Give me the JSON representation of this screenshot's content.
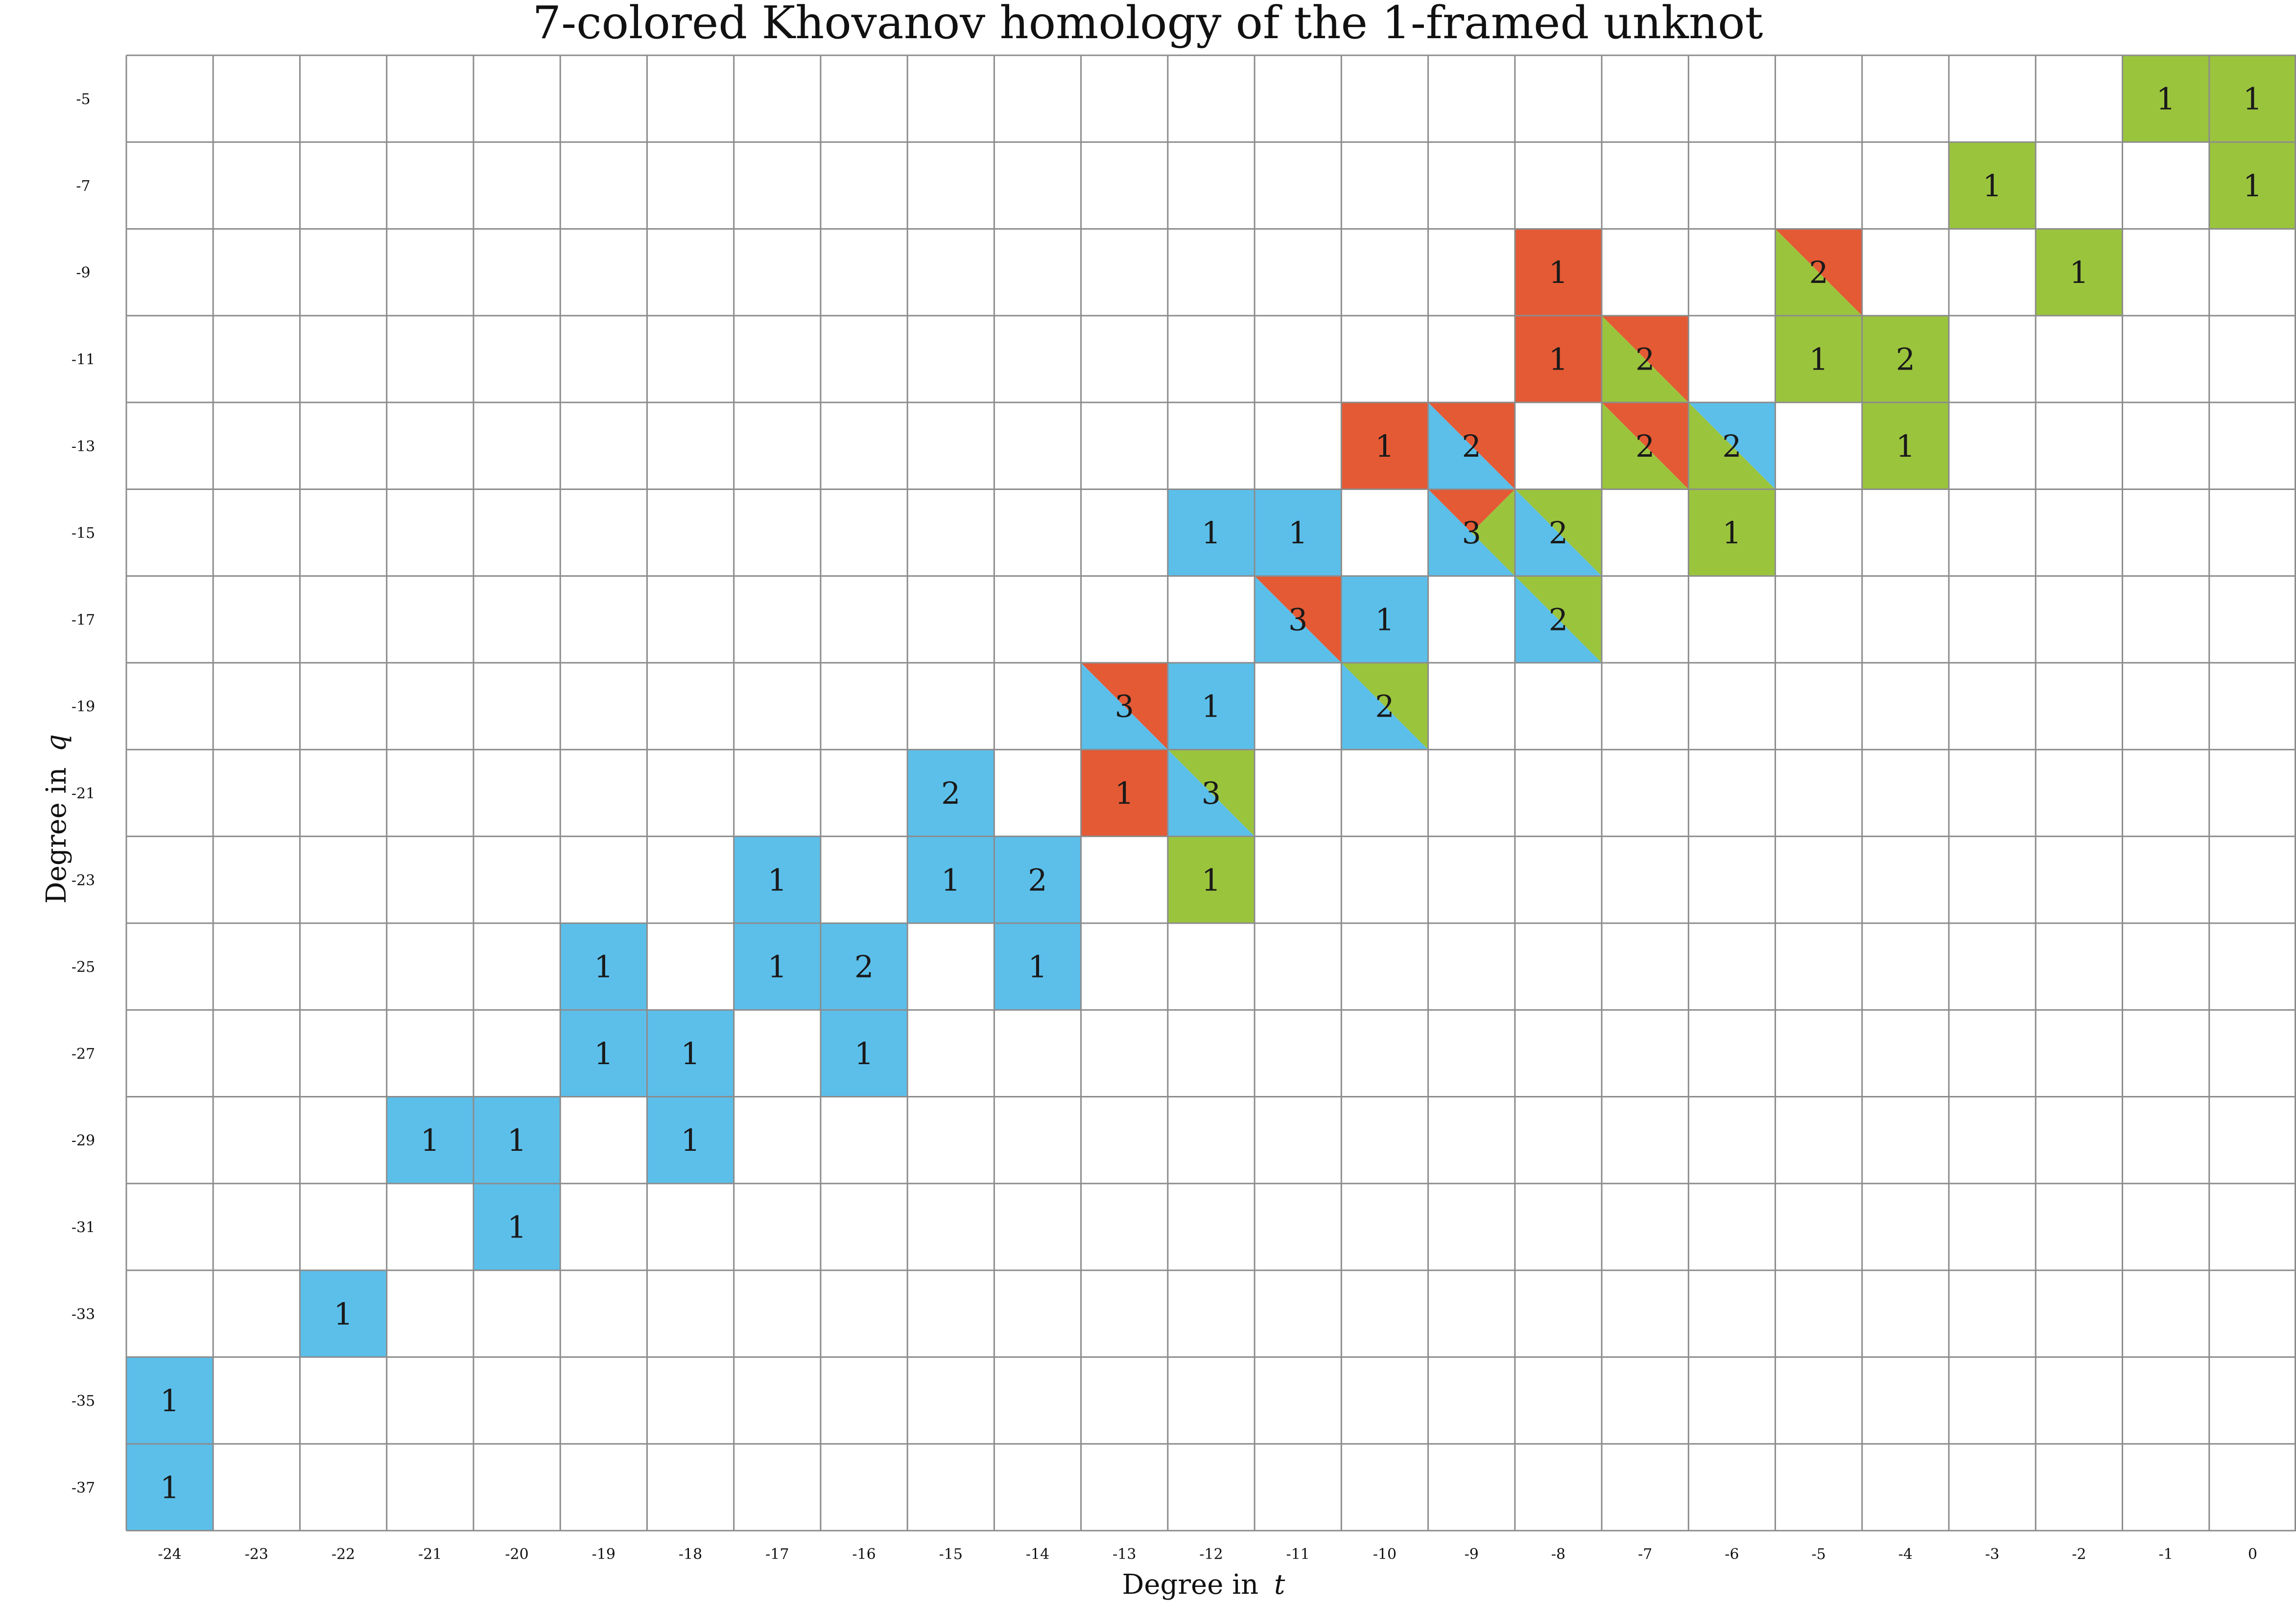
{
  "chart_data": {
    "type": "heatmap",
    "title": "7-colored Khovanov homology of the 1-framed unknot",
    "xlabel": "Degree in",
    "xlabel_var": "t",
    "ylabel": "Degree in",
    "ylabel_var": "q",
    "x_ticks": [
      -24,
      -23,
      -22,
      -21,
      -20,
      -19,
      -18,
      -17,
      -16,
      -15,
      -14,
      -13,
      -12,
      -11,
      -10,
      -9,
      -8,
      -7,
      -6,
      -5,
      -4,
      -3,
      -2,
      -1,
      0
    ],
    "y_ticks": [
      -5,
      -7,
      -9,
      -11,
      -13,
      -15,
      -17,
      -19,
      -21,
      -23,
      -25,
      -27,
      -29,
      -31,
      -33,
      -35,
      -37
    ],
    "colors": {
      "blue": "#5bbfea",
      "red": "#e45a35",
      "green": "#9bc43d"
    },
    "cells": [
      {
        "t": -1,
        "q": -5,
        "value": "1",
        "colors": [
          "green"
        ]
      },
      {
        "t": 0,
        "q": -5,
        "value": "1",
        "colors": [
          "green"
        ]
      },
      {
        "t": -3,
        "q": -7,
        "value": "1",
        "colors": [
          "green"
        ]
      },
      {
        "t": 0,
        "q": -7,
        "value": "1",
        "colors": [
          "green"
        ]
      },
      {
        "t": -8,
        "q": -9,
        "value": "1",
        "colors": [
          "red"
        ]
      },
      {
        "t": -5,
        "q": -9,
        "value": "2",
        "colors": [
          "red",
          "green"
        ]
      },
      {
        "t": -2,
        "q": -9,
        "value": "1",
        "colors": [
          "green"
        ]
      },
      {
        "t": -8,
        "q": -11,
        "value": "1",
        "colors": [
          "red"
        ]
      },
      {
        "t": -7,
        "q": -11,
        "value": "2",
        "colors": [
          "red",
          "green"
        ]
      },
      {
        "t": -5,
        "q": -11,
        "value": "1",
        "colors": [
          "green"
        ]
      },
      {
        "t": -4,
        "q": -11,
        "value": "2",
        "colors": [
          "green"
        ]
      },
      {
        "t": -10,
        "q": -13,
        "value": "1",
        "colors": [
          "red"
        ]
      },
      {
        "t": -9,
        "q": -13,
        "value": "2",
        "colors": [
          "red",
          "blue"
        ]
      },
      {
        "t": -7,
        "q": -13,
        "value": "2",
        "colors": [
          "red",
          "green"
        ]
      },
      {
        "t": -6,
        "q": -13,
        "value": "2",
        "colors": [
          "blue",
          "green"
        ]
      },
      {
        "t": -4,
        "q": -13,
        "value": "1",
        "colors": [
          "green"
        ]
      },
      {
        "t": -12,
        "q": -15,
        "value": "1",
        "colors": [
          "blue"
        ]
      },
      {
        "t": -11,
        "q": -15,
        "value": "1",
        "colors": [
          "blue"
        ]
      },
      {
        "t": -9,
        "q": -15,
        "value": "3",
        "colors": [
          "red",
          "blue",
          "green"
        ]
      },
      {
        "t": -8,
        "q": -15,
        "value": "2",
        "colors": [
          "green",
          "blue"
        ]
      },
      {
        "t": -6,
        "q": -15,
        "value": "1",
        "colors": [
          "green"
        ]
      },
      {
        "t": -11,
        "q": -17,
        "value": "3",
        "colors": [
          "red",
          "blue"
        ]
      },
      {
        "t": -10,
        "q": -17,
        "value": "1",
        "colors": [
          "blue"
        ]
      },
      {
        "t": -8,
        "q": -17,
        "value": "2",
        "colors": [
          "green",
          "blue"
        ]
      },
      {
        "t": -13,
        "q": -19,
        "value": "3",
        "colors": [
          "red",
          "blue"
        ]
      },
      {
        "t": -12,
        "q": -19,
        "value": "1",
        "colors": [
          "blue"
        ]
      },
      {
        "t": -10,
        "q": -19,
        "value": "2",
        "colors": [
          "green",
          "blue"
        ]
      },
      {
        "t": -15,
        "q": -21,
        "value": "2",
        "colors": [
          "blue"
        ]
      },
      {
        "t": -13,
        "q": -21,
        "value": "1",
        "colors": [
          "red"
        ]
      },
      {
        "t": -12,
        "q": -21,
        "value": "3",
        "colors": [
          "green",
          "blue"
        ]
      },
      {
        "t": -17,
        "q": -23,
        "value": "1",
        "colors": [
          "blue"
        ]
      },
      {
        "t": -15,
        "q": -23,
        "value": "1",
        "colors": [
          "blue"
        ]
      },
      {
        "t": -14,
        "q": -23,
        "value": "2",
        "colors": [
          "blue"
        ]
      },
      {
        "t": -12,
        "q": -23,
        "value": "1",
        "colors": [
          "green"
        ]
      },
      {
        "t": -19,
        "q": -25,
        "value": "1",
        "colors": [
          "blue"
        ]
      },
      {
        "t": -17,
        "q": -25,
        "value": "1",
        "colors": [
          "blue"
        ]
      },
      {
        "t": -16,
        "q": -25,
        "value": "2",
        "colors": [
          "blue"
        ]
      },
      {
        "t": -14,
        "q": -25,
        "value": "1",
        "colors": [
          "blue"
        ]
      },
      {
        "t": -19,
        "q": -27,
        "value": "1",
        "colors": [
          "blue"
        ]
      },
      {
        "t": -18,
        "q": -27,
        "value": "1",
        "colors": [
          "blue"
        ]
      },
      {
        "t": -16,
        "q": -27,
        "value": "1",
        "colors": [
          "blue"
        ]
      },
      {
        "t": -21,
        "q": -29,
        "value": "1",
        "colors": [
          "blue"
        ]
      },
      {
        "t": -20,
        "q": -29,
        "value": "1",
        "colors": [
          "blue"
        ]
      },
      {
        "t": -18,
        "q": -29,
        "value": "1",
        "colors": [
          "blue"
        ]
      },
      {
        "t": -20,
        "q": -31,
        "value": "1",
        "colors": [
          "blue"
        ]
      },
      {
        "t": -22,
        "q": -33,
        "value": "1",
        "colors": [
          "blue"
        ]
      },
      {
        "t": -24,
        "q": -35,
        "value": "1",
        "colors": [
          "blue"
        ]
      },
      {
        "t": -24,
        "q": -37,
        "value": "1",
        "colors": [
          "blue"
        ]
      }
    ]
  }
}
